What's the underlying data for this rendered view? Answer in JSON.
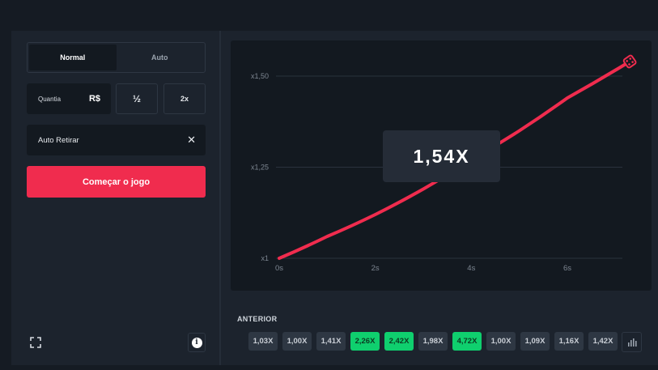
{
  "controls": {
    "tabs": [
      {
        "label": "Normal",
        "active": true
      },
      {
        "label": "Auto",
        "active": false
      }
    ],
    "amount_label": "Quantia",
    "currency": "R$",
    "half_label": "½",
    "double_label": "2x",
    "auto_cashout_label": "Auto Retirar",
    "clear_symbol": "✕",
    "start_label": "Começar o jogo",
    "info_symbol": "i"
  },
  "game": {
    "current_multiplier": "1,54X"
  },
  "chart_data": {
    "type": "line",
    "x_ticks": [
      "0s",
      "2s",
      "4s",
      "6s"
    ],
    "y_ticks": [
      "x1",
      "x1,25",
      "x1,50"
    ],
    "xlim": [
      0,
      7
    ],
    "ylim": [
      1,
      1.5
    ],
    "x": [
      0,
      1,
      2,
      3,
      4,
      5,
      6,
      7.3
    ],
    "y": [
      1.0,
      1.06,
      1.12,
      1.19,
      1.27,
      1.35,
      1.44,
      1.54
    ],
    "line_color": "#f02c4e",
    "grid": true
  },
  "history": {
    "title": "ANTERIOR",
    "items": [
      {
        "value": "1,03X",
        "win": false
      },
      {
        "value": "1,00X",
        "win": false
      },
      {
        "value": "1,41X",
        "win": false
      },
      {
        "value": "2,26X",
        "win": true
      },
      {
        "value": "2,42X",
        "win": true
      },
      {
        "value": "1,98X",
        "win": false
      },
      {
        "value": "4,72X",
        "win": true
      },
      {
        "value": "1,00X",
        "win": false
      },
      {
        "value": "1,09X",
        "win": false
      },
      {
        "value": "1,16X",
        "win": false
      },
      {
        "value": "1,42X",
        "win": false
      }
    ]
  },
  "icons": {
    "fullscreen": "fullscreen-icon",
    "info": "info-icon",
    "stats": "bar-chart-icon",
    "dice": "dice-icon"
  }
}
